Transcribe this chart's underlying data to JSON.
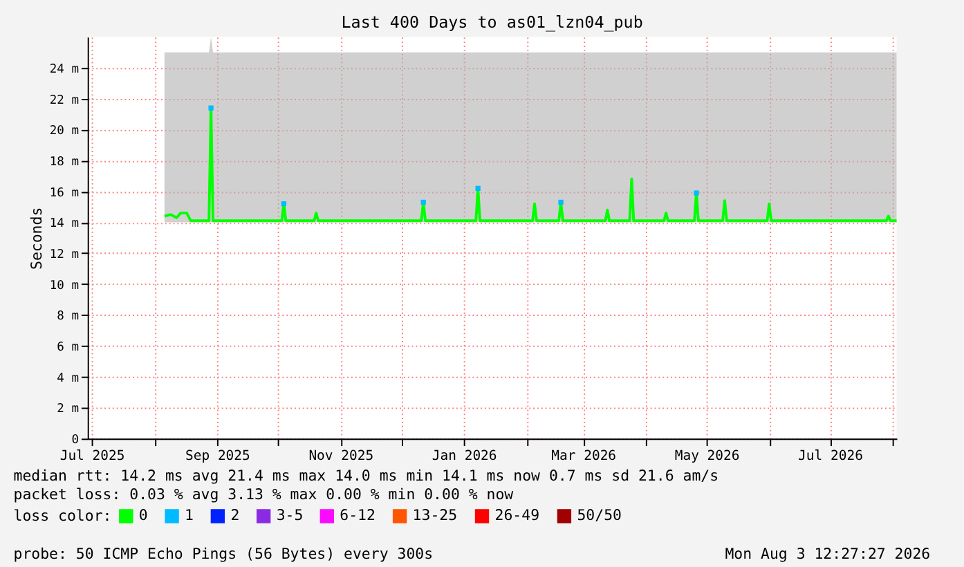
{
  "chart_data": {
    "type": "line",
    "title": "Last 400 Days to as01_lzn04_pub",
    "ylabel": "Seconds",
    "legend_title": "loss color:",
    "legend": "bottom",
    "grid": true,
    "marker": "none",
    "line_style": "solid",
    "xlim": [
      "2025-06-29",
      "2026-08-03"
    ],
    "xticks": [
      {
        "value": "2025-07-01",
        "label": "Jul 2025"
      },
      {
        "value": "2025-08-01",
        "label": null
      },
      {
        "value": "2025-09-01",
        "label": "Sep 2025"
      },
      {
        "value": "2025-10-01",
        "label": null
      },
      {
        "value": "2025-11-01",
        "label": "Nov 2025"
      },
      {
        "value": "2025-12-01",
        "label": null
      },
      {
        "value": "2026-01-01",
        "label": "Jan 2026"
      },
      {
        "value": "2026-02-01",
        "label": null
      },
      {
        "value": "2026-03-01",
        "label": "Mar 2026"
      },
      {
        "value": "2026-04-01",
        "label": null
      },
      {
        "value": "2026-05-01",
        "label": "May 2026"
      },
      {
        "value": "2026-06-01",
        "label": null
      },
      {
        "value": "2026-07-01",
        "label": "Jul 2026"
      },
      {
        "value": "2026-08-01",
        "label": null
      }
    ],
    "ylim": [
      0,
      26
    ],
    "yticks": [
      0,
      {
        "value": 2,
        "label": "2 m"
      },
      {
        "value": 4,
        "label": "4 m"
      },
      {
        "value": 6,
        "label": "6 m"
      },
      {
        "value": 8,
        "label": "8 m"
      },
      {
        "value": 10,
        "label": "10 m"
      },
      {
        "value": 12,
        "label": "12 m"
      },
      {
        "value": 14,
        "label": "14 m"
      },
      {
        "value": 16,
        "label": "16 m"
      },
      {
        "value": 18,
        "label": "18 m"
      },
      {
        "value": 20,
        "label": "20 m"
      },
      {
        "value": 22,
        "label": "22 m"
      },
      {
        "value": 24,
        "label": "24 m"
      }
    ],
    "series": [
      {
        "name": "0",
        "color": "#00ff00",
        "x": [
          "2025-08-06",
          "2025-08-09",
          "2025-08-12",
          "2025-08-14",
          "2025-08-17",
          "2025-08-19",
          "2025-08-28",
          "2025-08-29",
          "2025-08-30",
          "2025-10-03",
          "2025-10-04",
          "2025-10-05",
          "2025-10-19",
          "2025-10-20",
          "2025-10-21",
          "2025-12-11",
          "2025-12-12",
          "2025-12-13",
          "2026-01-07",
          "2026-01-08",
          "2026-01-09",
          "2026-02-04",
          "2026-02-05",
          "2026-02-06",
          "2026-02-17",
          "2026-02-18",
          "2026-02-19",
          "2026-03-12",
          "2026-03-13",
          "2026-03-14",
          "2026-03-24",
          "2026-03-25",
          "2026-03-26",
          "2026-04-10",
          "2026-04-11",
          "2026-04-12",
          "2026-04-25",
          "2026-04-26",
          "2026-04-27",
          "2026-05-09",
          "2026-05-10",
          "2026-05-11",
          "2026-05-31",
          "2026-06-01",
          "2026-06-02",
          "2026-07-29",
          "2026-07-30",
          "2026-07-31",
          "2026-08-03"
        ],
        "values": [
          14.4,
          14.5,
          14.3,
          14.6,
          14.6,
          14.1,
          14.1,
          21.4,
          14.1,
          14.1,
          15.2,
          14.1,
          14.1,
          14.6,
          14.1,
          14.1,
          15.3,
          14.1,
          14.1,
          16.2,
          14.1,
          14.1,
          15.2,
          14.1,
          14.1,
          15.3,
          14.1,
          14.1,
          14.8,
          14.1,
          14.1,
          16.8,
          14.1,
          14.1,
          14.6,
          14.1,
          14.1,
          15.9,
          14.1,
          14.1,
          15.4,
          14.1,
          14.1,
          15.2,
          14.1,
          14.1,
          14.4,
          14.1,
          14.1
        ],
        "lower": [
          14,
          14,
          14,
          14,
          14,
          14,
          14,
          14,
          14,
          14,
          14,
          14,
          14,
          14,
          14,
          14,
          14,
          14,
          14,
          14,
          14,
          14,
          14,
          14,
          14,
          14,
          14,
          14,
          14,
          14,
          14,
          14,
          14,
          14,
          14,
          14,
          14,
          14,
          14,
          14,
          14,
          14,
          14,
          14,
          14,
          14,
          14,
          14,
          14
        ],
        "upper": [
          25,
          25,
          25,
          25,
          25,
          25,
          25,
          26,
          25,
          25,
          25,
          25,
          25,
          25,
          25,
          25,
          25,
          25,
          25,
          25,
          25,
          25,
          25,
          25,
          25,
          25,
          25,
          25,
          25,
          25,
          25,
          25,
          25,
          25,
          25,
          25,
          25,
          25,
          25,
          25,
          25,
          25,
          25,
          25,
          25,
          25,
          25,
          25,
          25
        ]
      },
      {
        "name": "1",
        "color": "#00bbff",
        "type": "scatter",
        "marker": "square",
        "x": [
          "2025-08-29",
          "2025-10-04",
          "2025-12-12",
          "2026-01-08",
          "2026-02-18",
          "2026-04-26"
        ],
        "values": [
          21.4,
          15.2,
          15.3,
          16.2,
          15.3,
          15.9
        ]
      },
      {
        "name": "2",
        "color": "#0022ff",
        "type": "scatter"
      },
      {
        "name": "3-5",
        "color": "#8a2be2",
        "type": "scatter"
      },
      {
        "name": "6-12",
        "color": "#fa0bff",
        "type": "scatter"
      },
      {
        "name": "13-25",
        "color": "#ff5500",
        "type": "scatter"
      },
      {
        "name": "26-49",
        "color": "#ff0000",
        "type": "scatter"
      },
      {
        "name": "50/50",
        "color": "#a10000",
        "type": "scatter"
      }
    ],
    "annotations": [
      "median rtt:  14.2 ms avg  21.4 ms max  14.0 ms min  14.1 ms now  0.7 ms sd  21.6   am/s",
      "packet loss: 0.03 % avg  3.13 % max  0.00 % min  0.00 % now",
      "probe:       50 ICMP Echo Pings (56 Bytes) every 300s",
      "Mon Aug  3 12:27:27 2026"
    ]
  }
}
